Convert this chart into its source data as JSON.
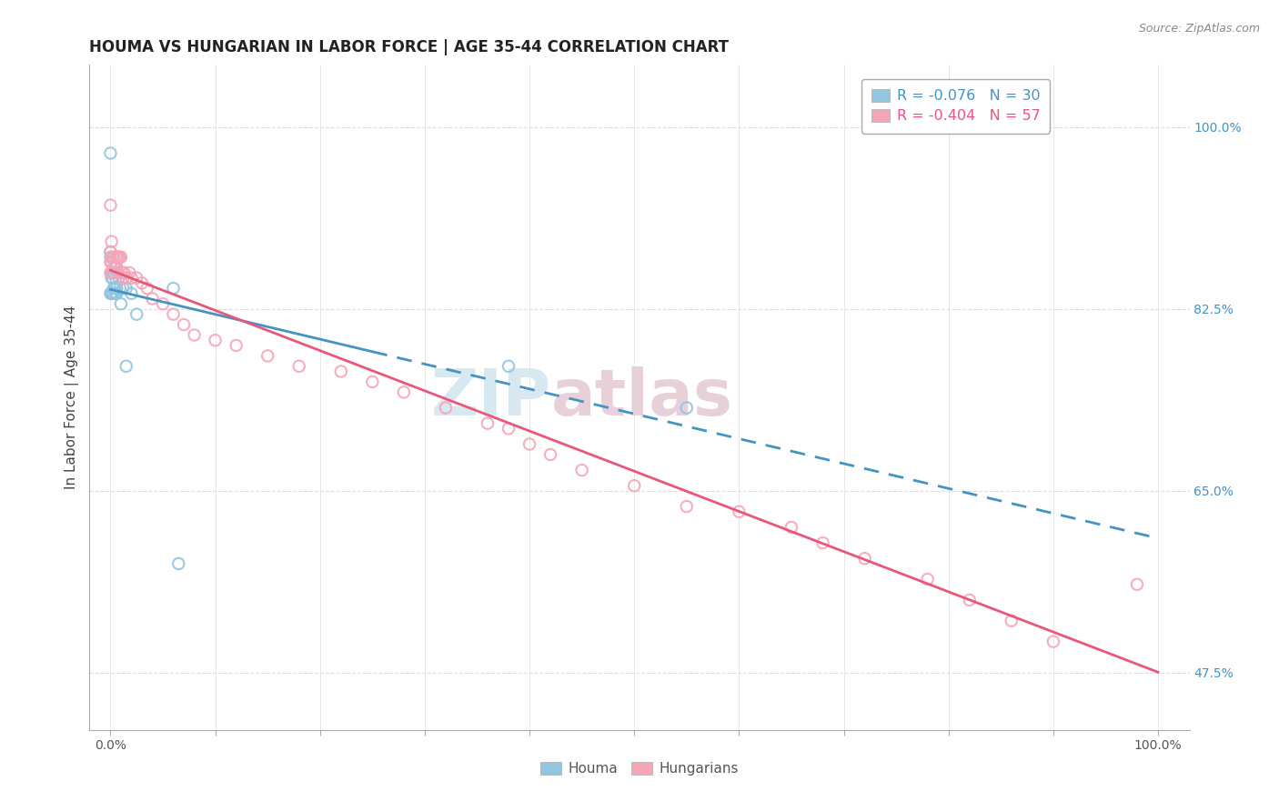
{
  "title": "HOUMA VS HUNGARIAN IN LABOR FORCE | AGE 35-44 CORRELATION CHART",
  "source_text": "Source: ZipAtlas.com",
  "ylabel": "In Labor Force | Age 35-44",
  "xlim": [
    -0.02,
    1.03
  ],
  "ylim": [
    0.42,
    1.06
  ],
  "yticks": [
    0.475,
    0.65,
    0.825,
    1.0
  ],
  "ytick_labels": [
    "47.5%",
    "65.0%",
    "82.5%",
    "100.0%"
  ],
  "xtick_positions": [
    0.0,
    0.1,
    0.2,
    0.3,
    0.4,
    0.5,
    0.6,
    0.7,
    0.8,
    0.9,
    1.0
  ],
  "xtick_labels": [
    "0.0%",
    "",
    "",
    "",
    "",
    "",
    "",
    "",
    "",
    "",
    "100.0%"
  ],
  "houma_color": "#92c5de",
  "hungarian_color": "#f4a6b8",
  "houma_line_color": "#4393c3",
  "hungarian_line_color": "#e8567a",
  "houma_R": -0.076,
  "houma_N": 30,
  "hungarian_R": -0.404,
  "hungarian_N": 57,
  "houma_points_x": [
    0.0,
    0.0,
    0.0,
    0.0,
    0.001,
    0.001,
    0.001,
    0.002,
    0.002,
    0.003,
    0.003,
    0.003,
    0.004,
    0.005,
    0.005,
    0.006,
    0.006,
    0.007,
    0.008,
    0.009,
    0.01,
    0.012,
    0.015,
    0.015,
    0.02,
    0.025,
    0.06,
    0.065,
    0.38,
    0.55
  ],
  "houma_points_y": [
    0.975,
    0.88,
    0.875,
    0.84,
    0.86,
    0.855,
    0.84,
    0.855,
    0.84,
    0.86,
    0.845,
    0.84,
    0.845,
    0.855,
    0.84,
    0.845,
    0.84,
    0.86,
    0.855,
    0.845,
    0.83,
    0.845,
    0.845,
    0.77,
    0.84,
    0.82,
    0.845,
    0.58,
    0.77,
    0.73
  ],
  "hungarian_points_x": [
    0.0,
    0.0,
    0.0,
    0.0,
    0.001,
    0.001,
    0.002,
    0.002,
    0.003,
    0.003,
    0.004,
    0.005,
    0.005,
    0.006,
    0.006,
    0.007,
    0.008,
    0.009,
    0.01,
    0.011,
    0.012,
    0.013,
    0.015,
    0.018,
    0.02,
    0.025,
    0.03,
    0.035,
    0.04,
    0.05,
    0.06,
    0.07,
    0.08,
    0.1,
    0.12,
    0.15,
    0.18,
    0.22,
    0.25,
    0.28,
    0.32,
    0.36,
    0.38,
    0.4,
    0.42,
    0.45,
    0.5,
    0.55,
    0.6,
    0.65,
    0.68,
    0.72,
    0.78,
    0.82,
    0.86,
    0.9,
    0.98
  ],
  "hungarian_points_y": [
    0.925,
    0.88,
    0.87,
    0.86,
    0.89,
    0.87,
    0.875,
    0.86,
    0.875,
    0.865,
    0.865,
    0.875,
    0.865,
    0.875,
    0.865,
    0.875,
    0.875,
    0.875,
    0.875,
    0.86,
    0.855,
    0.86,
    0.855,
    0.86,
    0.855,
    0.855,
    0.85,
    0.845,
    0.835,
    0.83,
    0.82,
    0.81,
    0.8,
    0.795,
    0.79,
    0.78,
    0.77,
    0.765,
    0.755,
    0.745,
    0.73,
    0.715,
    0.71,
    0.695,
    0.685,
    0.67,
    0.655,
    0.635,
    0.63,
    0.615,
    0.6,
    0.585,
    0.565,
    0.545,
    0.525,
    0.505,
    0.56
  ],
  "background_color": "#ffffff",
  "grid_color": "#dddddd",
  "watermark_color": "#d8e8f0",
  "watermark_color2": "#e8d0d8",
  "title_fontsize": 12,
  "label_fontsize": 11,
  "tick_fontsize": 10,
  "houma_line_solid_end": 0.25,
  "hungarian_line_start_y": 0.875,
  "hungarian_line_end_y": 0.555
}
